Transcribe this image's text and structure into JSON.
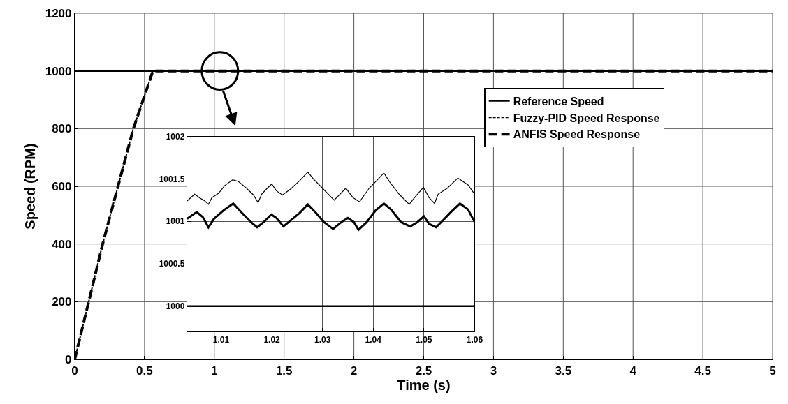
{
  "chart_data": [
    {
      "type": "line",
      "xlabel": "Time (s)",
      "ylabel": "Speed (RPM)",
      "xlim": [
        0,
        5
      ],
      "xticks": [
        0,
        0.5,
        1,
        1.5,
        2,
        2.5,
        3,
        3.5,
        4,
        4.5,
        5
      ],
      "ylim": [
        0,
        1200
      ],
      "yticks": [
        0,
        200,
        400,
        600,
        800,
        1000,
        1200
      ],
      "grid": true,
      "legend": "top right",
      "series": [
        {
          "name": "Reference Speed",
          "color": "#000000",
          "line_style": "solid",
          "x": [
            0,
            5
          ],
          "values": [
            1000,
            1000
          ]
        },
        {
          "name": "Fuzzy-PID Speed Response",
          "color": "#000000",
          "line_style": "dotted",
          "x": [
            0,
            0.1,
            0.2,
            0.31,
            0.42,
            0.56,
            5
          ],
          "values": [
            0,
            200,
            400,
            600,
            800,
            1000,
            1000
          ]
        },
        {
          "name": "ANFIS Speed Response",
          "color": "#000000",
          "line_style": "dashed",
          "x": [
            0,
            0.1,
            0.2,
            0.31,
            0.42,
            0.56,
            5
          ],
          "values": [
            0,
            200,
            400,
            600,
            800,
            1000,
            1000
          ]
        }
      ]
    },
    {
      "type": "line",
      "xlim": [
        1.0033,
        1.06
      ],
      "xticks": [
        1.01,
        1.02,
        1.03,
        1.04,
        1.05,
        1.06
      ],
      "ylim": [
        999.7,
        1002
      ],
      "yticks": [
        1000,
        1000.5,
        1001,
        1001.5,
        1002
      ],
      "grid": true,
      "series": [
        {
          "color": "#000000",
          "line_style": "solid",
          "x": [
            1.0033,
            1.06
          ],
          "values": [
            1000,
            1000
          ]
        },
        {
          "color": "#000000",
          "line_style": "solid",
          "x": [
            1.0033,
            1.0048,
            1.0057,
            1.0068,
            1.0075,
            1.0082,
            1.0095,
            1.0107,
            1.0123,
            1.0134,
            1.015,
            1.0164,
            1.0173,
            1.018,
            1.0191,
            1.02,
            1.0209,
            1.0221,
            1.0237,
            1.0255,
            1.0271,
            1.0282,
            1.03,
            1.0323,
            1.0346,
            1.036,
            1.0373,
            1.0392,
            1.041,
            1.0421,
            1.0433,
            1.0451,
            1.0471,
            1.0483,
            1.0499,
            1.051,
            1.0521,
            1.0528,
            1.0546,
            1.0567,
            1.0587,
            1.06
          ],
          "values": [
            1001.24,
            1001.32,
            1001.28,
            1001.24,
            1001.2,
            1001.28,
            1001.33,
            1001.42,
            1001.49,
            1001.47,
            1001.39,
            1001.31,
            1001.22,
            1001.32,
            1001.39,
            1001.44,
            1001.36,
            1001.31,
            1001.38,
            1001.48,
            1001.58,
            1001.5,
            1001.39,
            1001.25,
            1001.39,
            1001.28,
            1001.23,
            1001.39,
            1001.5,
            1001.57,
            1001.46,
            1001.32,
            1001.2,
            1001.29,
            1001.4,
            1001.28,
            1001.21,
            1001.32,
            1001.39,
            1001.51,
            1001.43,
            1001.32
          ]
        },
        {
          "color": "#000000",
          "line_style": "solid",
          "x": [
            1.0033,
            1.0052,
            1.0064,
            1.0075,
            1.0086,
            1.0105,
            1.0124,
            1.0141,
            1.0159,
            1.0171,
            1.0184,
            1.0199,
            1.0209,
            1.0223,
            1.0239,
            1.0255,
            1.0271,
            1.0287,
            1.0303,
            1.0321,
            1.0337,
            1.035,
            1.0362,
            1.0371,
            1.0387,
            1.0405,
            1.0421,
            1.0435,
            1.0455,
            1.0473,
            1.0487,
            1.05,
            1.051,
            1.0524,
            1.0539,
            1.0555,
            1.0571,
            1.0587,
            1.06
          ],
          "values": [
            1001.03,
            1001.11,
            1001.05,
            1000.93,
            1001.03,
            1001.13,
            1001.21,
            1001.1,
            1000.99,
            1000.93,
            1000.99,
            1001.08,
            1001.04,
            1000.94,
            1001.02,
            1001.1,
            1001.2,
            1001.1,
            1000.99,
            1000.91,
            1000.99,
            1001.04,
            1000.99,
            1000.9,
            1000.99,
            1001.13,
            1001.21,
            1001.14,
            1000.99,
            1000.94,
            1000.99,
            1001.06,
            1000.97,
            1000.93,
            1001.02,
            1001.12,
            1001.21,
            1001.14,
            1000.99
          ]
        }
      ]
    }
  ]
}
